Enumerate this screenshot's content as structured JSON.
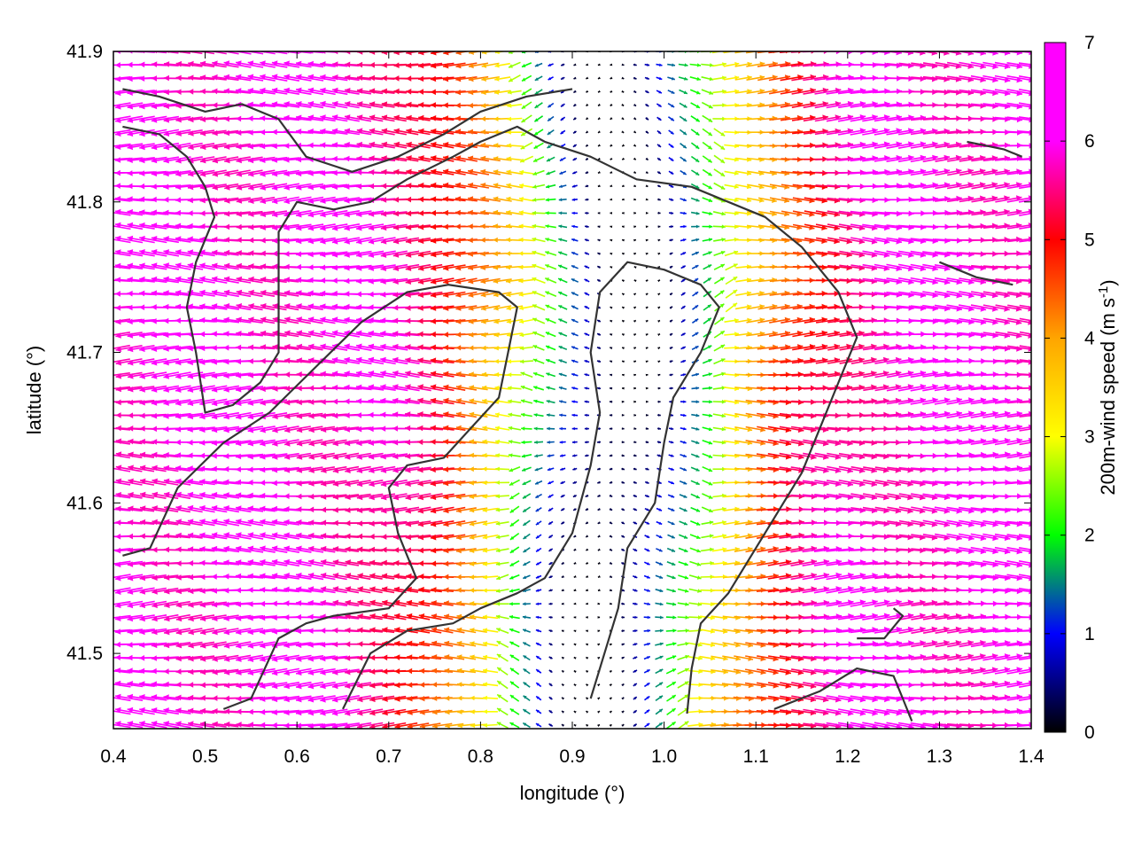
{
  "chart_data": {
    "type": "vector_field",
    "xlabel": "longitude (°)",
    "ylabel": "latitude (°)",
    "xlim": [
      0.4,
      1.4
    ],
    "ylim": [
      41.45,
      41.9
    ],
    "xticks": [
      "0.4",
      "0.5",
      "0.6",
      "0.7",
      "0.8",
      "0.9",
      "1.0",
      "1.1",
      "1.2",
      "1.3",
      "1.4"
    ],
    "yticks": [
      "41.5",
      "41.6",
      "41.7",
      "41.8",
      "41.9"
    ],
    "xtick_values": [
      0.4,
      0.5,
      0.6,
      0.7,
      0.8,
      0.9,
      1.0,
      1.1,
      1.2,
      1.3,
      1.4
    ],
    "ytick_values": [
      41.5,
      41.6,
      41.7,
      41.8,
      41.9
    ],
    "colorbar": {
      "label_main": "200m-wind speed (m s",
      "label_sup": "-1",
      "label_end": ")",
      "range": [
        0,
        7
      ],
      "ticks": [
        "0",
        "1",
        "2",
        "3",
        "4",
        "5",
        "6",
        "7"
      ],
      "tick_values": [
        0,
        1,
        2,
        3,
        4,
        5,
        6,
        7
      ],
      "palette": [
        "#000000",
        "#0000ff",
        "#00ff00",
        "#ffff00",
        "#ffa500",
        "#ff0000",
        "#ff00ff"
      ]
    },
    "field_model": {
      "max_speed": 7.0,
      "valley_center_lon": [
        0.92,
        0.93,
        0.95,
        0.97,
        0.96,
        0.94
      ],
      "valley_center_lat": [
        41.45,
        41.55,
        41.65,
        41.75,
        41.82,
        41.9
      ],
      "valley_width_lon": 0.18
    },
    "contours": [
      [
        [
          0.41,
          41.565
        ],
        [
          0.44,
          41.57
        ],
        [
          0.47,
          41.61
        ],
        [
          0.52,
          41.64
        ],
        [
          0.57,
          41.66
        ],
        [
          0.62,
          41.69
        ],
        [
          0.67,
          41.72
        ],
        [
          0.72,
          41.74
        ],
        [
          0.765,
          41.745
        ],
        [
          0.82,
          41.74
        ],
        [
          0.84,
          41.73
        ],
        [
          0.83,
          41.7
        ],
        [
          0.82,
          41.67
        ],
        [
          0.79,
          41.65
        ],
        [
          0.76,
          41.63
        ],
        [
          0.72,
          41.625
        ],
        [
          0.7,
          41.61
        ],
        [
          0.71,
          41.58
        ],
        [
          0.73,
          41.55
        ],
        [
          0.7,
          41.53
        ],
        [
          0.64,
          41.525
        ],
        [
          0.61,
          41.52
        ],
        [
          0.58,
          41.51
        ],
        [
          0.55,
          41.47
        ],
        [
          0.52,
          41.463
        ]
      ],
      [
        [
          0.41,
          41.85
        ],
        [
          0.45,
          41.845
        ],
        [
          0.48,
          41.83
        ],
        [
          0.5,
          41.81
        ],
        [
          0.51,
          41.79
        ],
        [
          0.49,
          41.76
        ],
        [
          0.48,
          41.73
        ],
        [
          0.49,
          41.7
        ],
        [
          0.5,
          41.66
        ],
        [
          0.53,
          41.665
        ],
        [
          0.56,
          41.68
        ],
        [
          0.58,
          41.7
        ],
        [
          0.58,
          41.74
        ],
        [
          0.58,
          41.78
        ],
        [
          0.6,
          41.8
        ],
        [
          0.64,
          41.795
        ],
        [
          0.68,
          41.8
        ],
        [
          0.72,
          41.815
        ],
        [
          0.77,
          41.83
        ],
        [
          0.8,
          41.84
        ],
        [
          0.84,
          41.85
        ],
        [
          0.87,
          41.84
        ],
        [
          0.92,
          41.83
        ],
        [
          0.97,
          41.815
        ],
        [
          1.03,
          41.81
        ],
        [
          1.07,
          41.8
        ],
        [
          1.11,
          41.79
        ],
        [
          1.15,
          41.77
        ],
        [
          1.19,
          41.74
        ],
        [
          1.21,
          41.71
        ],
        [
          1.19,
          41.68
        ],
        [
          1.17,
          41.65
        ],
        [
          1.15,
          41.62
        ],
        [
          1.13,
          41.6
        ],
        [
          1.1,
          41.57
        ],
        [
          1.07,
          41.54
        ],
        [
          1.04,
          41.52
        ],
        [
          1.03,
          41.49
        ],
        [
          1.025,
          41.46
        ]
      ],
      [
        [
          0.41,
          41.875
        ],
        [
          0.45,
          41.87
        ],
        [
          0.5,
          41.86
        ],
        [
          0.54,
          41.865
        ],
        [
          0.58,
          41.855
        ],
        [
          0.61,
          41.83
        ],
        [
          0.66,
          41.82
        ],
        [
          0.71,
          41.83
        ],
        [
          0.76,
          41.845
        ],
        [
          0.8,
          41.86
        ],
        [
          0.85,
          41.87
        ],
        [
          0.9,
          41.875
        ]
      ],
      [
        [
          0.65,
          41.463
        ],
        [
          0.68,
          41.5
        ],
        [
          0.72,
          41.515
        ],
        [
          0.77,
          41.52
        ],
        [
          0.8,
          41.53
        ],
        [
          0.84,
          41.54
        ],
        [
          0.87,
          41.55
        ],
        [
          0.9,
          41.58
        ],
        [
          0.92,
          41.625
        ],
        [
          0.93,
          41.66
        ],
        [
          0.92,
          41.7
        ],
        [
          0.93,
          41.74
        ],
        [
          0.96,
          41.76
        ],
        [
          1.0,
          41.755
        ],
        [
          1.04,
          41.745
        ],
        [
          1.06,
          41.73
        ],
        [
          1.04,
          41.7
        ],
        [
          1.01,
          41.67
        ],
        [
          1.0,
          41.64
        ],
        [
          0.99,
          41.6
        ],
        [
          0.96,
          41.57
        ],
        [
          0.95,
          41.53
        ],
        [
          0.93,
          41.49
        ],
        [
          0.92,
          41.47
        ]
      ],
      [
        [
          1.12,
          41.463
        ],
        [
          1.17,
          41.475
        ],
        [
          1.21,
          41.49
        ],
        [
          1.25,
          41.485
        ],
        [
          1.26,
          41.47
        ],
        [
          1.27,
          41.455
        ]
      ],
      [
        [
          1.33,
          41.84
        ],
        [
          1.37,
          41.835
        ],
        [
          1.39,
          41.83
        ]
      ],
      [
        [
          1.3,
          41.76
        ],
        [
          1.34,
          41.75
        ],
        [
          1.38,
          41.745
        ]
      ],
      [
        [
          1.21,
          41.51
        ],
        [
          1.24,
          41.51
        ],
        [
          1.26,
          41.525
        ],
        [
          1.25,
          41.53
        ]
      ]
    ]
  }
}
